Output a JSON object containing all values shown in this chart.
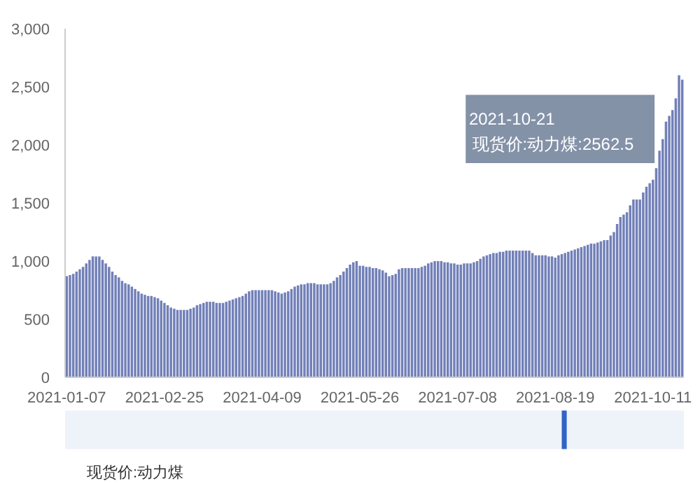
{
  "chart_data": {
    "type": "bar",
    "categories": [
      "2021-01-07",
      null,
      null,
      null,
      null,
      null,
      null,
      null,
      null,
      null,
      null,
      null,
      null,
      null,
      null,
      null,
      null,
      null,
      null,
      null,
      null,
      null,
      null,
      null,
      null,
      null,
      null,
      null,
      null,
      null,
      "2021-02-25",
      null,
      null,
      null,
      null,
      null,
      null,
      null,
      null,
      null,
      null,
      null,
      null,
      null,
      null,
      null,
      null,
      null,
      null,
      null,
      null,
      null,
      null,
      null,
      null,
      null,
      null,
      null,
      null,
      null,
      "2021-04-09",
      null,
      null,
      null,
      null,
      null,
      null,
      null,
      null,
      null,
      null,
      null,
      null,
      null,
      null,
      null,
      null,
      null,
      null,
      null,
      null,
      null,
      null,
      null,
      null,
      null,
      null,
      null,
      null,
      null,
      "2021-05-26",
      null,
      null,
      null,
      null,
      null,
      null,
      null,
      null,
      null,
      null,
      null,
      null,
      null,
      null,
      null,
      null,
      null,
      null,
      null,
      null,
      null,
      null,
      null,
      null,
      null,
      null,
      null,
      null,
      null,
      "2021-07-08",
      null,
      null,
      null,
      null,
      null,
      null,
      null,
      null,
      null,
      null,
      null,
      null,
      null,
      null,
      null,
      null,
      null,
      null,
      null,
      null,
      null,
      null,
      null,
      null,
      null,
      null,
      null,
      null,
      null,
      "2021-08-19",
      null,
      null,
      null,
      null,
      null,
      null,
      null,
      null,
      null,
      null,
      null,
      null,
      null,
      null,
      null,
      null,
      null,
      null,
      null,
      null,
      null,
      null,
      null,
      null,
      null,
      null,
      null,
      null,
      null,
      "2021-10-11",
      null,
      null,
      null,
      null,
      null,
      null,
      null,
      null,
      null
    ],
    "series": [
      {
        "name": "现货价:动力煤",
        "color": "#7280b8",
        "values": [
          870,
          880,
          890,
          910,
          930,
          950,
          980,
          1010,
          1040,
          1040,
          1040,
          1010,
          980,
          950,
          910,
          880,
          860,
          830,
          810,
          800,
          780,
          760,
          740,
          720,
          710,
          700,
          700,
          690,
          680,
          660,
          640,
          620,
          600,
          590,
          580,
          580,
          580,
          580,
          590,
          600,
          620,
          630,
          640,
          650,
          650,
          650,
          640,
          640,
          640,
          650,
          660,
          670,
          680,
          690,
          700,
          720,
          740,
          750,
          750,
          750,
          750,
          750,
          750,
          750,
          740,
          730,
          720,
          730,
          740,
          760,
          780,
          790,
          800,
          800,
          810,
          810,
          810,
          800,
          800,
          800,
          800,
          810,
          830,
          860,
          880,
          910,
          940,
          970,
          990,
          1000,
          960,
          960,
          950,
          950,
          940,
          940,
          930,
          920,
          900,
          870,
          880,
          890,
          930,
          940,
          940,
          940,
          940,
          940,
          940,
          950,
          960,
          980,
          990,
          1000,
          1000,
          1000,
          990,
          990,
          980,
          980,
          970,
          970,
          980,
          980,
          980,
          990,
          1000,
          1020,
          1040,
          1050,
          1060,
          1070,
          1070,
          1080,
          1080,
          1090,
          1090,
          1090,
          1090,
          1090,
          1090,
          1090,
          1090,
          1070,
          1050,
          1050,
          1050,
          1050,
          1040,
          1040,
          1030,
          1050,
          1060,
          1070,
          1080,
          1090,
          1100,
          1110,
          1120,
          1130,
          1140,
          1150,
          1150,
          1160,
          1170,
          1180,
          1180,
          1220,
          1250,
          1320,
          1380,
          1400,
          1420,
          1480,
          1530,
          1530,
          1530,
          1590,
          1640,
          1670,
          1700,
          1800,
          1950,
          2050,
          2200,
          2250,
          2300,
          2400,
          2600,
          2562.5
        ]
      }
    ],
    "ylim": [
      0,
      3000
    ],
    "yticks": [
      {
        "value": 0,
        "label": "0"
      },
      {
        "value": 500,
        "label": "500"
      },
      {
        "value": 1000,
        "label": "1,000"
      },
      {
        "value": 1500,
        "label": "1,500"
      },
      {
        "value": 2000,
        "label": "2,000"
      },
      {
        "value": 2500,
        "label": "2,500"
      },
      {
        "value": 3000,
        "label": "3,000"
      }
    ],
    "grid": false,
    "legend": "bottom left",
    "annotations": [
      "2021-10-21",
      "现货价:动力煤:2562.5"
    ]
  }
}
